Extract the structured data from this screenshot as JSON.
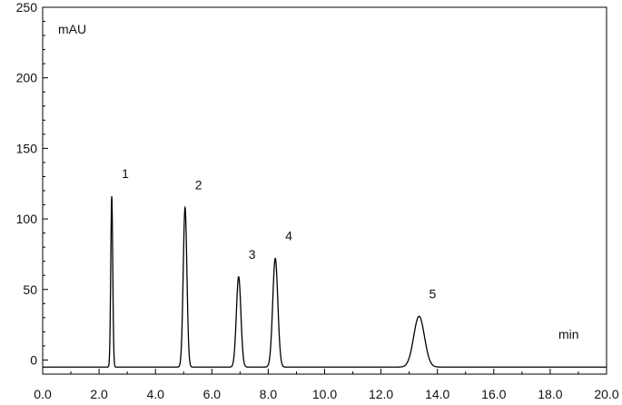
{
  "chart_data": {
    "type": "line",
    "title": "",
    "xlabel": "min",
    "ylabel": "mAU",
    "xlim": [
      0,
      20
    ],
    "ylim": [
      -10,
      250
    ],
    "x_ticks": [
      0,
      2,
      4,
      6,
      8,
      10,
      12,
      14,
      16,
      18,
      20
    ],
    "x_tick_labels": [
      "0.0",
      "2.0",
      "4.0",
      "6.0",
      "8.0",
      "10.0",
      "12.0",
      "14.0",
      "16.0",
      "18.0",
      "20.0"
    ],
    "y_ticks": [
      0,
      50,
      100,
      150,
      200,
      250
    ],
    "y_tick_labels": [
      "0",
      "50",
      "100",
      "150",
      "200",
      "250"
    ],
    "grid": false,
    "baseline": -5,
    "peaks": [
      {
        "label": "1",
        "rt": 2.45,
        "height": 116,
        "sigma": 0.035
      },
      {
        "label": "2",
        "rt": 5.05,
        "height": 108,
        "sigma": 0.065
      },
      {
        "label": "3",
        "rt": 6.95,
        "height": 59,
        "sigma": 0.08
      },
      {
        "label": "4",
        "rt": 8.25,
        "height": 72,
        "sigma": 0.09
      },
      {
        "label": "5",
        "rt": 13.35,
        "height": 31,
        "sigma": 0.19
      }
    ],
    "line_color": "#000000"
  }
}
